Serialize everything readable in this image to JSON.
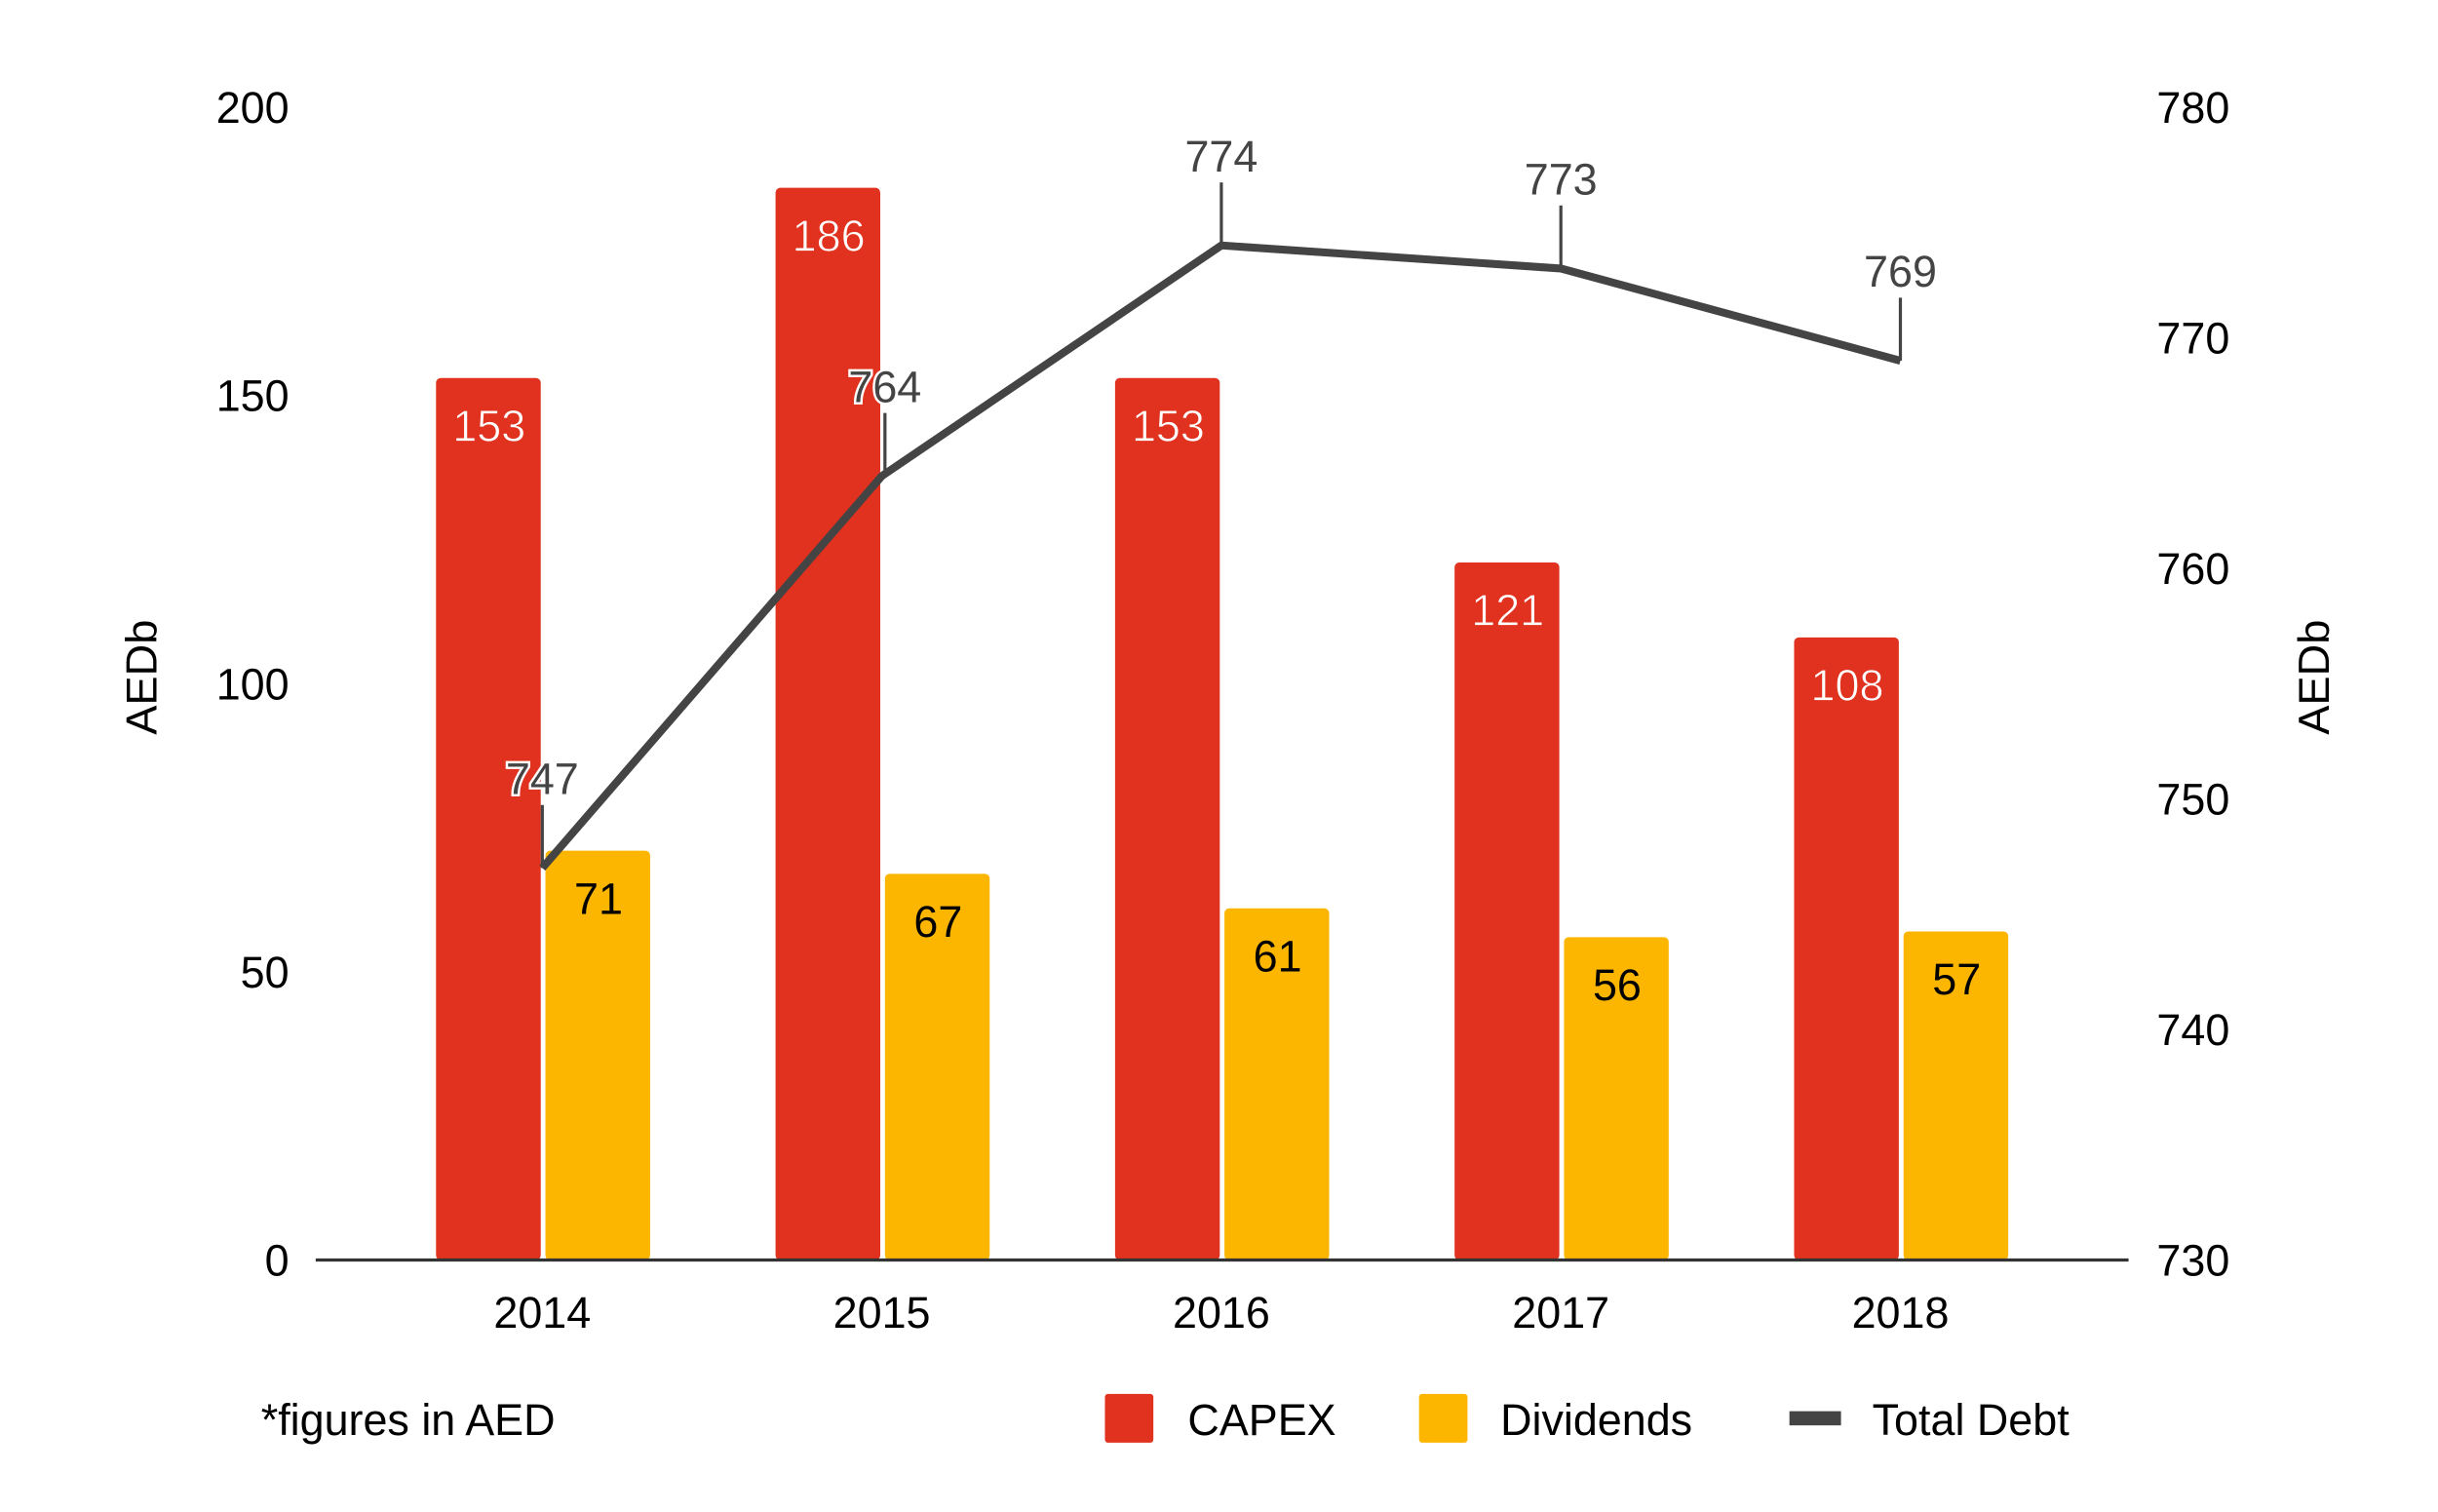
{
  "chart_data": {
    "type": "bar+line",
    "categories": [
      "2014",
      "2015",
      "2016",
      "2017",
      "2018"
    ],
    "series": [
      {
        "name": "CAPEX",
        "type": "bar",
        "axis": "left",
        "color": "#E0321E",
        "values": [
          153,
          186,
          153,
          121,
          108
        ]
      },
      {
        "name": "Dividends",
        "type": "bar",
        "axis": "left",
        "color": "#FDB600",
        "values": [
          71,
          67,
          61,
          56,
          57
        ]
      },
      {
        "name": "Total Debt",
        "type": "line",
        "axis": "right",
        "color": "#444444",
        "values": [
          747,
          764,
          774,
          773,
          769
        ]
      }
    ],
    "ylabel_left": "AEDb",
    "ylabel_right": "AEDb",
    "ylim_left": [
      0,
      200
    ],
    "yticks_left": [
      0,
      50,
      100,
      150,
      200
    ],
    "ylim_right": [
      730,
      780
    ],
    "yticks_right": [
      730,
      740,
      750,
      760,
      770,
      780
    ],
    "grid": false,
    "legend_position": "bottom-right",
    "footnote": "*figures in AED"
  }
}
